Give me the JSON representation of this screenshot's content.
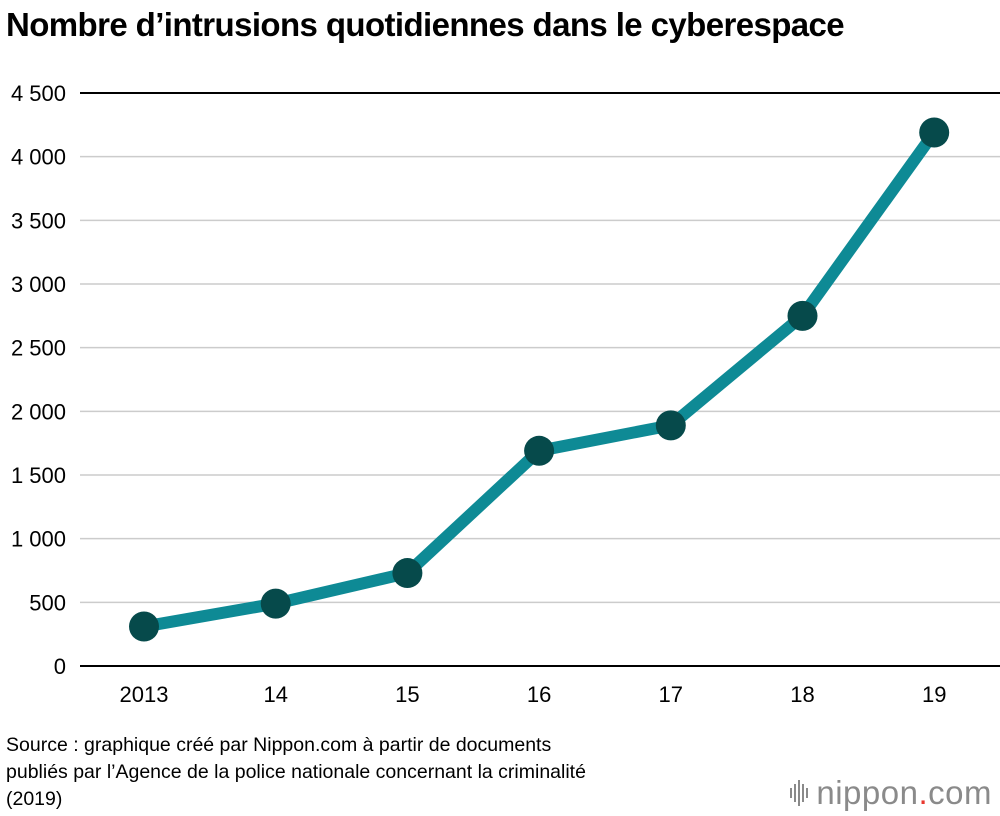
{
  "title": "Nombre d’intrusions quotidiennes dans le cyberespace",
  "chart_data": {
    "type": "line",
    "title": "Nombre d’intrusions quotidiennes dans le cyberespace",
    "xlabel": "",
    "ylabel": "",
    "categories": [
      "2013",
      "14",
      "15",
      "16",
      "17",
      "18",
      "19"
    ],
    "values": [
      310,
      490,
      730,
      1690,
      1890,
      2750,
      4190
    ],
    "ylim": [
      0,
      4500
    ],
    "yticks": [
      0,
      500,
      1000,
      1500,
      2000,
      2500,
      3000,
      3500,
      4000,
      4500
    ],
    "ytick_labels": [
      "0",
      "500",
      "1 000",
      "1 500",
      "2 000",
      "2 500",
      "3 000",
      "3 500",
      "4 000",
      "4 500"
    ],
    "grid": true,
    "colors": {
      "line": "#0e8a95",
      "marker": "#064a4b",
      "grid": "#cccccc",
      "axis": "#000000"
    }
  },
  "source": {
    "line1": "Source : graphique créé par Nippon.com à partir de documents",
    "line2": "publiés par l’Agence de la police nationale concernant la criminalité",
    "line3": "(2019)"
  },
  "logo": {
    "name": "nippon",
    "dot": ".",
    "suffix": "com",
    "icon": "nippon-logo-icon"
  }
}
